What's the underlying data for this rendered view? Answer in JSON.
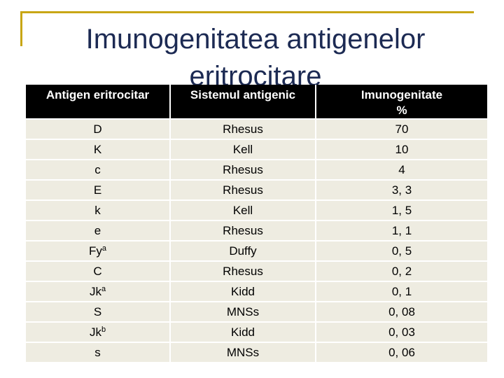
{
  "title": "Imunogenitatea antigenelor eritrocitare",
  "table": {
    "headers": [
      "Antigen eritrocitar",
      "Sistemul antigenic",
      "Imunogenitate %"
    ],
    "rows": [
      {
        "antigen": "D",
        "sup": "",
        "system": "Rhesus",
        "value": "70"
      },
      {
        "antigen": "K",
        "sup": "",
        "system": "Kell",
        "value": "10"
      },
      {
        "antigen": "c",
        "sup": "",
        "system": "Rhesus",
        "value": "4"
      },
      {
        "antigen": "E",
        "sup": "",
        "system": "Rhesus",
        "value": "3, 3"
      },
      {
        "antigen": "k",
        "sup": "",
        "system": "Kell",
        "value": "1, 5"
      },
      {
        "antigen": "e",
        "sup": "",
        "system": "Rhesus",
        "value": "1, 1"
      },
      {
        "antigen": "Fy",
        "sup": "a",
        "system": "Duffy",
        "value": "0, 5"
      },
      {
        "antigen": "C",
        "sup": "",
        "system": "Rhesus",
        "value": "0, 2"
      },
      {
        "antigen": "Jk",
        "sup": "a",
        "system": "Kidd",
        "value": "0, 1"
      },
      {
        "antigen": "S",
        "sup": "",
        "system": "MNSs",
        "value": "0, 08"
      },
      {
        "antigen": "Jk",
        "sup": "b",
        "system": "Kidd",
        "value": "0, 03"
      },
      {
        "antigen": "s",
        "sup": "",
        "system": "MNSs",
        "value": "0, 06"
      }
    ]
  }
}
